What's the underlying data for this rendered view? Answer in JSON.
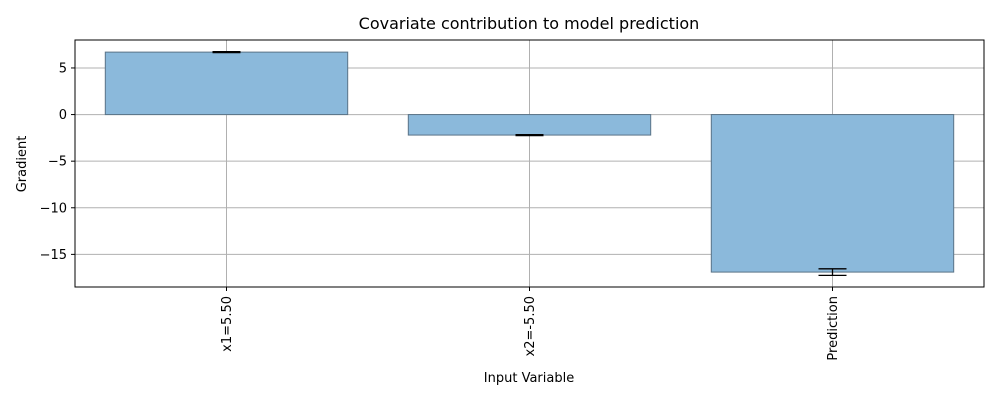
{
  "chart_data": {
    "type": "bar",
    "title": "Covariate contribution to model prediction",
    "xlabel": "Input Variable",
    "ylabel": "Gradient",
    "categories": [
      "x1=5.50",
      "x2=-5.50",
      "Prediction"
    ],
    "values": [
      6.7,
      -2.2,
      -16.9
    ],
    "error": [
      0.05,
      0.05,
      0.35
    ],
    "ylim": [
      -18.5,
      8.0
    ],
    "yticks": [
      5,
      0,
      -5,
      -10,
      -15
    ],
    "ytick_labels": [
      "5",
      "0",
      "−5",
      "−10",
      "−15"
    ],
    "grid": true,
    "bar_color": "#8bb9db",
    "bar_edge_color": "#5a7387",
    "grid_color": "#b0b0b0"
  }
}
